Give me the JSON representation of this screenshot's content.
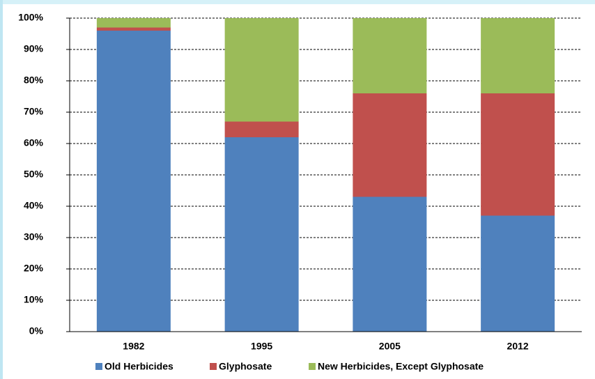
{
  "chart_data": {
    "type": "bar",
    "stacked": true,
    "categories": [
      "1982",
      "1995",
      "2005",
      "2012"
    ],
    "series": [
      {
        "name": "Old Herbicides",
        "color": "#4f81bd",
        "values": [
          96,
          62,
          43,
          37
        ]
      },
      {
        "name": "Glyphosate",
        "color": "#c0504d",
        "values": [
          1,
          5,
          33,
          39
        ]
      },
      {
        "name": "New Herbicides, Except Glyphosate",
        "color": "#9bbb59",
        "values": [
          3,
          33,
          24,
          24
        ]
      }
    ],
    "ylim": [
      0,
      100
    ],
    "yticks": [
      {
        "value": 0,
        "label": "0%"
      },
      {
        "value": 10,
        "label": "10%"
      },
      {
        "value": 20,
        "label": "20%"
      },
      {
        "value": 30,
        "label": "30%"
      },
      {
        "value": 40,
        "label": "40%"
      },
      {
        "value": 50,
        "label": "50%"
      },
      {
        "value": 60,
        "label": "60%"
      },
      {
        "value": 70,
        "label": "70%"
      },
      {
        "value": 80,
        "label": "80%"
      },
      {
        "value": 90,
        "label": "90%"
      },
      {
        "value": 100,
        "label": "100%"
      }
    ],
    "grid": true,
    "legend": "bottom"
  }
}
